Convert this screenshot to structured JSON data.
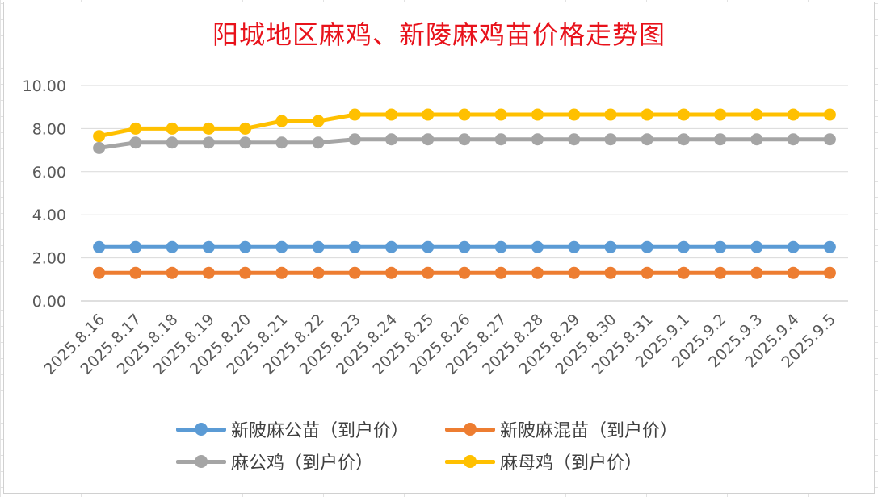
{
  "chart_data": {
    "type": "line",
    "title": "阳城地区麻鸡、新陵麻鸡苗价格走势图",
    "xlabel": "",
    "ylabel": "",
    "ylim": [
      0,
      10
    ],
    "ytick_labels": [
      "0.00",
      "2.00",
      "4.00",
      "6.00",
      "8.00",
      "10.00"
    ],
    "grid": true,
    "legend_position": "bottom",
    "categories": [
      "2025.8.16",
      "2025.8.17",
      "2025.8.18",
      "2025.8.19",
      "2025.8.20",
      "2025.8.21",
      "2025.8.22",
      "2025.8.23",
      "2025.8.24",
      "2025.8.25",
      "2025.8.26",
      "2025.8.27",
      "2025.8.28",
      "2025.8.29",
      "2025.8.30",
      "2025.8.31",
      "2025.9.1",
      "2025.9.2",
      "2025.9.3",
      "2025.9.4",
      "2025.9.5"
    ],
    "series": [
      {
        "name": "新陂麻公苗（到户价）",
        "color": "#5b9bd5",
        "values": [
          2.5,
          2.5,
          2.5,
          2.5,
          2.5,
          2.5,
          2.5,
          2.5,
          2.5,
          2.5,
          2.5,
          2.5,
          2.5,
          2.5,
          2.5,
          2.5,
          2.5,
          2.5,
          2.5,
          2.5,
          2.5
        ]
      },
      {
        "name": "新陂麻混苗（到户价）",
        "color": "#ed7d31",
        "values": [
          1.3,
          1.3,
          1.3,
          1.3,
          1.3,
          1.3,
          1.3,
          1.3,
          1.3,
          1.3,
          1.3,
          1.3,
          1.3,
          1.3,
          1.3,
          1.3,
          1.3,
          1.3,
          1.3,
          1.3,
          1.3
        ]
      },
      {
        "name": "麻公鸡（到户价）",
        "color": "#a5a5a5",
        "values": [
          7.1,
          7.35,
          7.35,
          7.35,
          7.35,
          7.35,
          7.35,
          7.5,
          7.5,
          7.5,
          7.5,
          7.5,
          7.5,
          7.5,
          7.5,
          7.5,
          7.5,
          7.5,
          7.5,
          7.5,
          7.5
        ]
      },
      {
        "name": "麻母鸡（到户价）",
        "color": "#ffc000",
        "values": [
          7.65,
          8.0,
          8.0,
          8.0,
          8.0,
          8.35,
          8.35,
          8.65,
          8.65,
          8.65,
          8.65,
          8.65,
          8.65,
          8.65,
          8.65,
          8.65,
          8.65,
          8.65,
          8.65,
          8.65,
          8.65
        ]
      }
    ]
  }
}
